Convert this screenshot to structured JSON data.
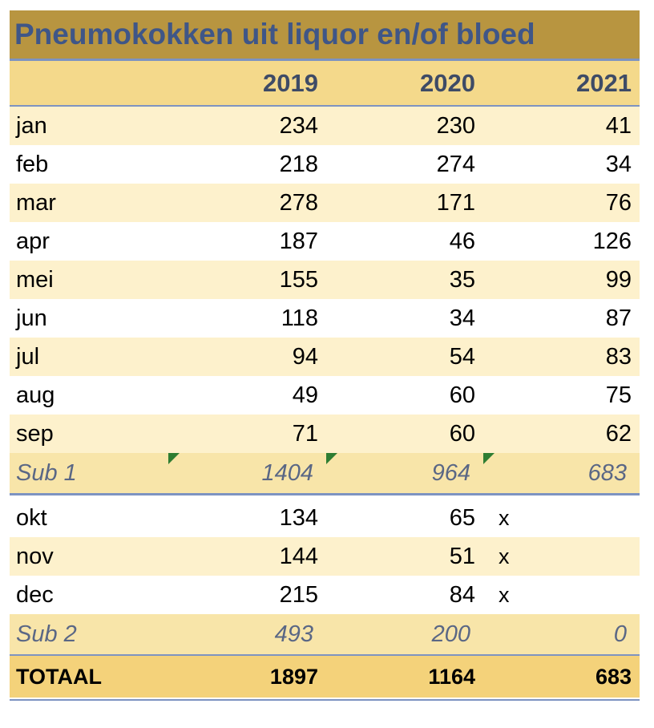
{
  "title": "Pneumokokken uit liquor en/of bloed",
  "years": [
    "2019",
    "2020",
    "2021"
  ],
  "rows_top": [
    {
      "month": "jan",
      "v2019": "234",
      "v2020": "230",
      "v2021": "41"
    },
    {
      "month": "feb",
      "v2019": "218",
      "v2020": "274",
      "v2021": "34"
    },
    {
      "month": "mar",
      "v2019": "278",
      "v2020": "171",
      "v2021": "76"
    },
    {
      "month": "apr",
      "v2019": "187",
      "v2020": "46",
      "v2021": "126"
    },
    {
      "month": "mei",
      "v2019": "155",
      "v2020": "35",
      "v2021": "99"
    },
    {
      "month": "jun",
      "v2019": "118",
      "v2020": "34",
      "v2021": "87"
    },
    {
      "month": "jul",
      "v2019": "94",
      "v2020": "54",
      "v2021": "83"
    },
    {
      "month": "aug",
      "v2019": "49",
      "v2020": "60",
      "v2021": "75"
    },
    {
      "month": "sep",
      "v2019": "71",
      "v2020": "60",
      "v2021": "62"
    }
  ],
  "sub1": {
    "label": "Sub 1",
    "v2019": "1404",
    "v2020": "964",
    "v2021": "683"
  },
  "rows_bottom": [
    {
      "month": "okt",
      "v2019": "134",
      "v2020": "65",
      "v2021": "",
      "mark": "x"
    },
    {
      "month": "nov",
      "v2019": "144",
      "v2020": "51",
      "v2021": "",
      "mark": "x"
    },
    {
      "month": "dec",
      "v2019": "215",
      "v2020": "84",
      "v2021": "",
      "mark": "x"
    }
  ],
  "sub2": {
    "label": "Sub 2",
    "v2019": "493",
    "v2020": "200",
    "v2021": "0"
  },
  "total": {
    "label": "TOTAAL",
    "v2019": "1897",
    "v2020": "1164",
    "v2021": "683"
  },
  "colors": {
    "title_bg": "#b89540",
    "title_text": "#3f5687",
    "header_bg": "#f4d98b",
    "total_bg": "#f4d27a",
    "error_marker": "#2e7d32"
  }
}
